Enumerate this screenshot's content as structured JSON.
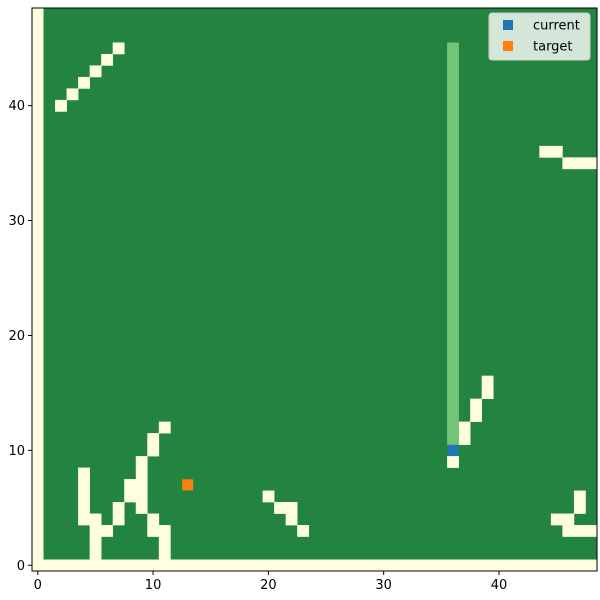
{
  "chart_data": {
    "type": "heatmap",
    "title": "",
    "xlabel": "",
    "ylabel": "",
    "grid_size": [
      49,
      49
    ],
    "xlim": [
      -0.5,
      48.5
    ],
    "ylim": [
      -0.5,
      48.5
    ],
    "x_ticks": [
      0,
      10,
      20,
      30,
      40
    ],
    "y_ticks": [
      0,
      10,
      20,
      30,
      40
    ],
    "grid_lines": false,
    "legend_placement": "top-right",
    "colors": {
      "open": "#ffffe0",
      "blocked": "#23843f",
      "path": "#74c476",
      "current": "#1f77b4",
      "target": "#ff7f0e"
    },
    "open_cells": [
      [
        2,
        40
      ],
      [
        3,
        41
      ],
      [
        4,
        42
      ],
      [
        5,
        43
      ],
      [
        6,
        44
      ],
      [
        7,
        45
      ],
      [
        44,
        36
      ],
      [
        45,
        36
      ],
      [
        46,
        35
      ],
      [
        47,
        35
      ],
      [
        48,
        35
      ],
      [
        11,
        12
      ],
      [
        10,
        11
      ],
      [
        10,
        10
      ],
      [
        9,
        9
      ],
      [
        9,
        8
      ],
      [
        9,
        7
      ],
      [
        8,
        7
      ],
      [
        8,
        6
      ],
      [
        9,
        6
      ],
      [
        9,
        5
      ],
      [
        4,
        8
      ],
      [
        4,
        7
      ],
      [
        4,
        6
      ],
      [
        4,
        5
      ],
      [
        4,
        4
      ],
      [
        5,
        4
      ],
      [
        5,
        3
      ],
      [
        6,
        3
      ],
      [
        5,
        2
      ],
      [
        5,
        1
      ],
      [
        7,
        5
      ],
      [
        7,
        4
      ],
      [
        10,
        4
      ],
      [
        10,
        3
      ],
      [
        11,
        3
      ],
      [
        11,
        2
      ],
      [
        11,
        1
      ],
      [
        20,
        6
      ],
      [
        21,
        5
      ],
      [
        22,
        5
      ],
      [
        22,
        4
      ],
      [
        23,
        3
      ],
      [
        36,
        9
      ],
      [
        37,
        11
      ],
      [
        37,
        12
      ],
      [
        38,
        13
      ],
      [
        38,
        14
      ],
      [
        39,
        15
      ],
      [
        39,
        16
      ],
      [
        47,
        6
      ],
      [
        47,
        5
      ],
      [
        45,
        4
      ],
      [
        46,
        4
      ],
      [
        46,
        3
      ],
      [
        47,
        3
      ],
      [
        48,
        3
      ]
    ],
    "path_cells": [
      [
        36,
        45
      ],
      [
        36,
        44
      ],
      [
        36,
        43
      ],
      [
        36,
        42
      ],
      [
        36,
        41
      ],
      [
        36,
        40
      ],
      [
        36,
        39
      ],
      [
        36,
        38
      ],
      [
        36,
        37
      ],
      [
        36,
        36
      ],
      [
        36,
        35
      ],
      [
        36,
        34
      ],
      [
        36,
        33
      ],
      [
        36,
        32
      ],
      [
        36,
        31
      ],
      [
        36,
        30
      ],
      [
        36,
        29
      ],
      [
        36,
        28
      ],
      [
        36,
        27
      ],
      [
        36,
        26
      ],
      [
        36,
        25
      ],
      [
        36,
        24
      ],
      [
        36,
        23
      ],
      [
        36,
        22
      ],
      [
        36,
        21
      ],
      [
        36,
        20
      ],
      [
        36,
        19
      ],
      [
        36,
        18
      ],
      [
        36,
        17
      ],
      [
        36,
        16
      ],
      [
        36,
        15
      ],
      [
        36,
        14
      ],
      [
        36,
        13
      ],
      [
        36,
        12
      ],
      [
        36,
        11
      ]
    ],
    "series": [
      {
        "name": "current",
        "type": "scatter",
        "marker": "square",
        "color": "#1f77b4",
        "x": [
          36
        ],
        "y": [
          10
        ]
      },
      {
        "name": "target",
        "type": "scatter",
        "marker": "square",
        "color": "#ff7f0e",
        "x": [
          13
        ],
        "y": [
          7
        ]
      }
    ]
  }
}
